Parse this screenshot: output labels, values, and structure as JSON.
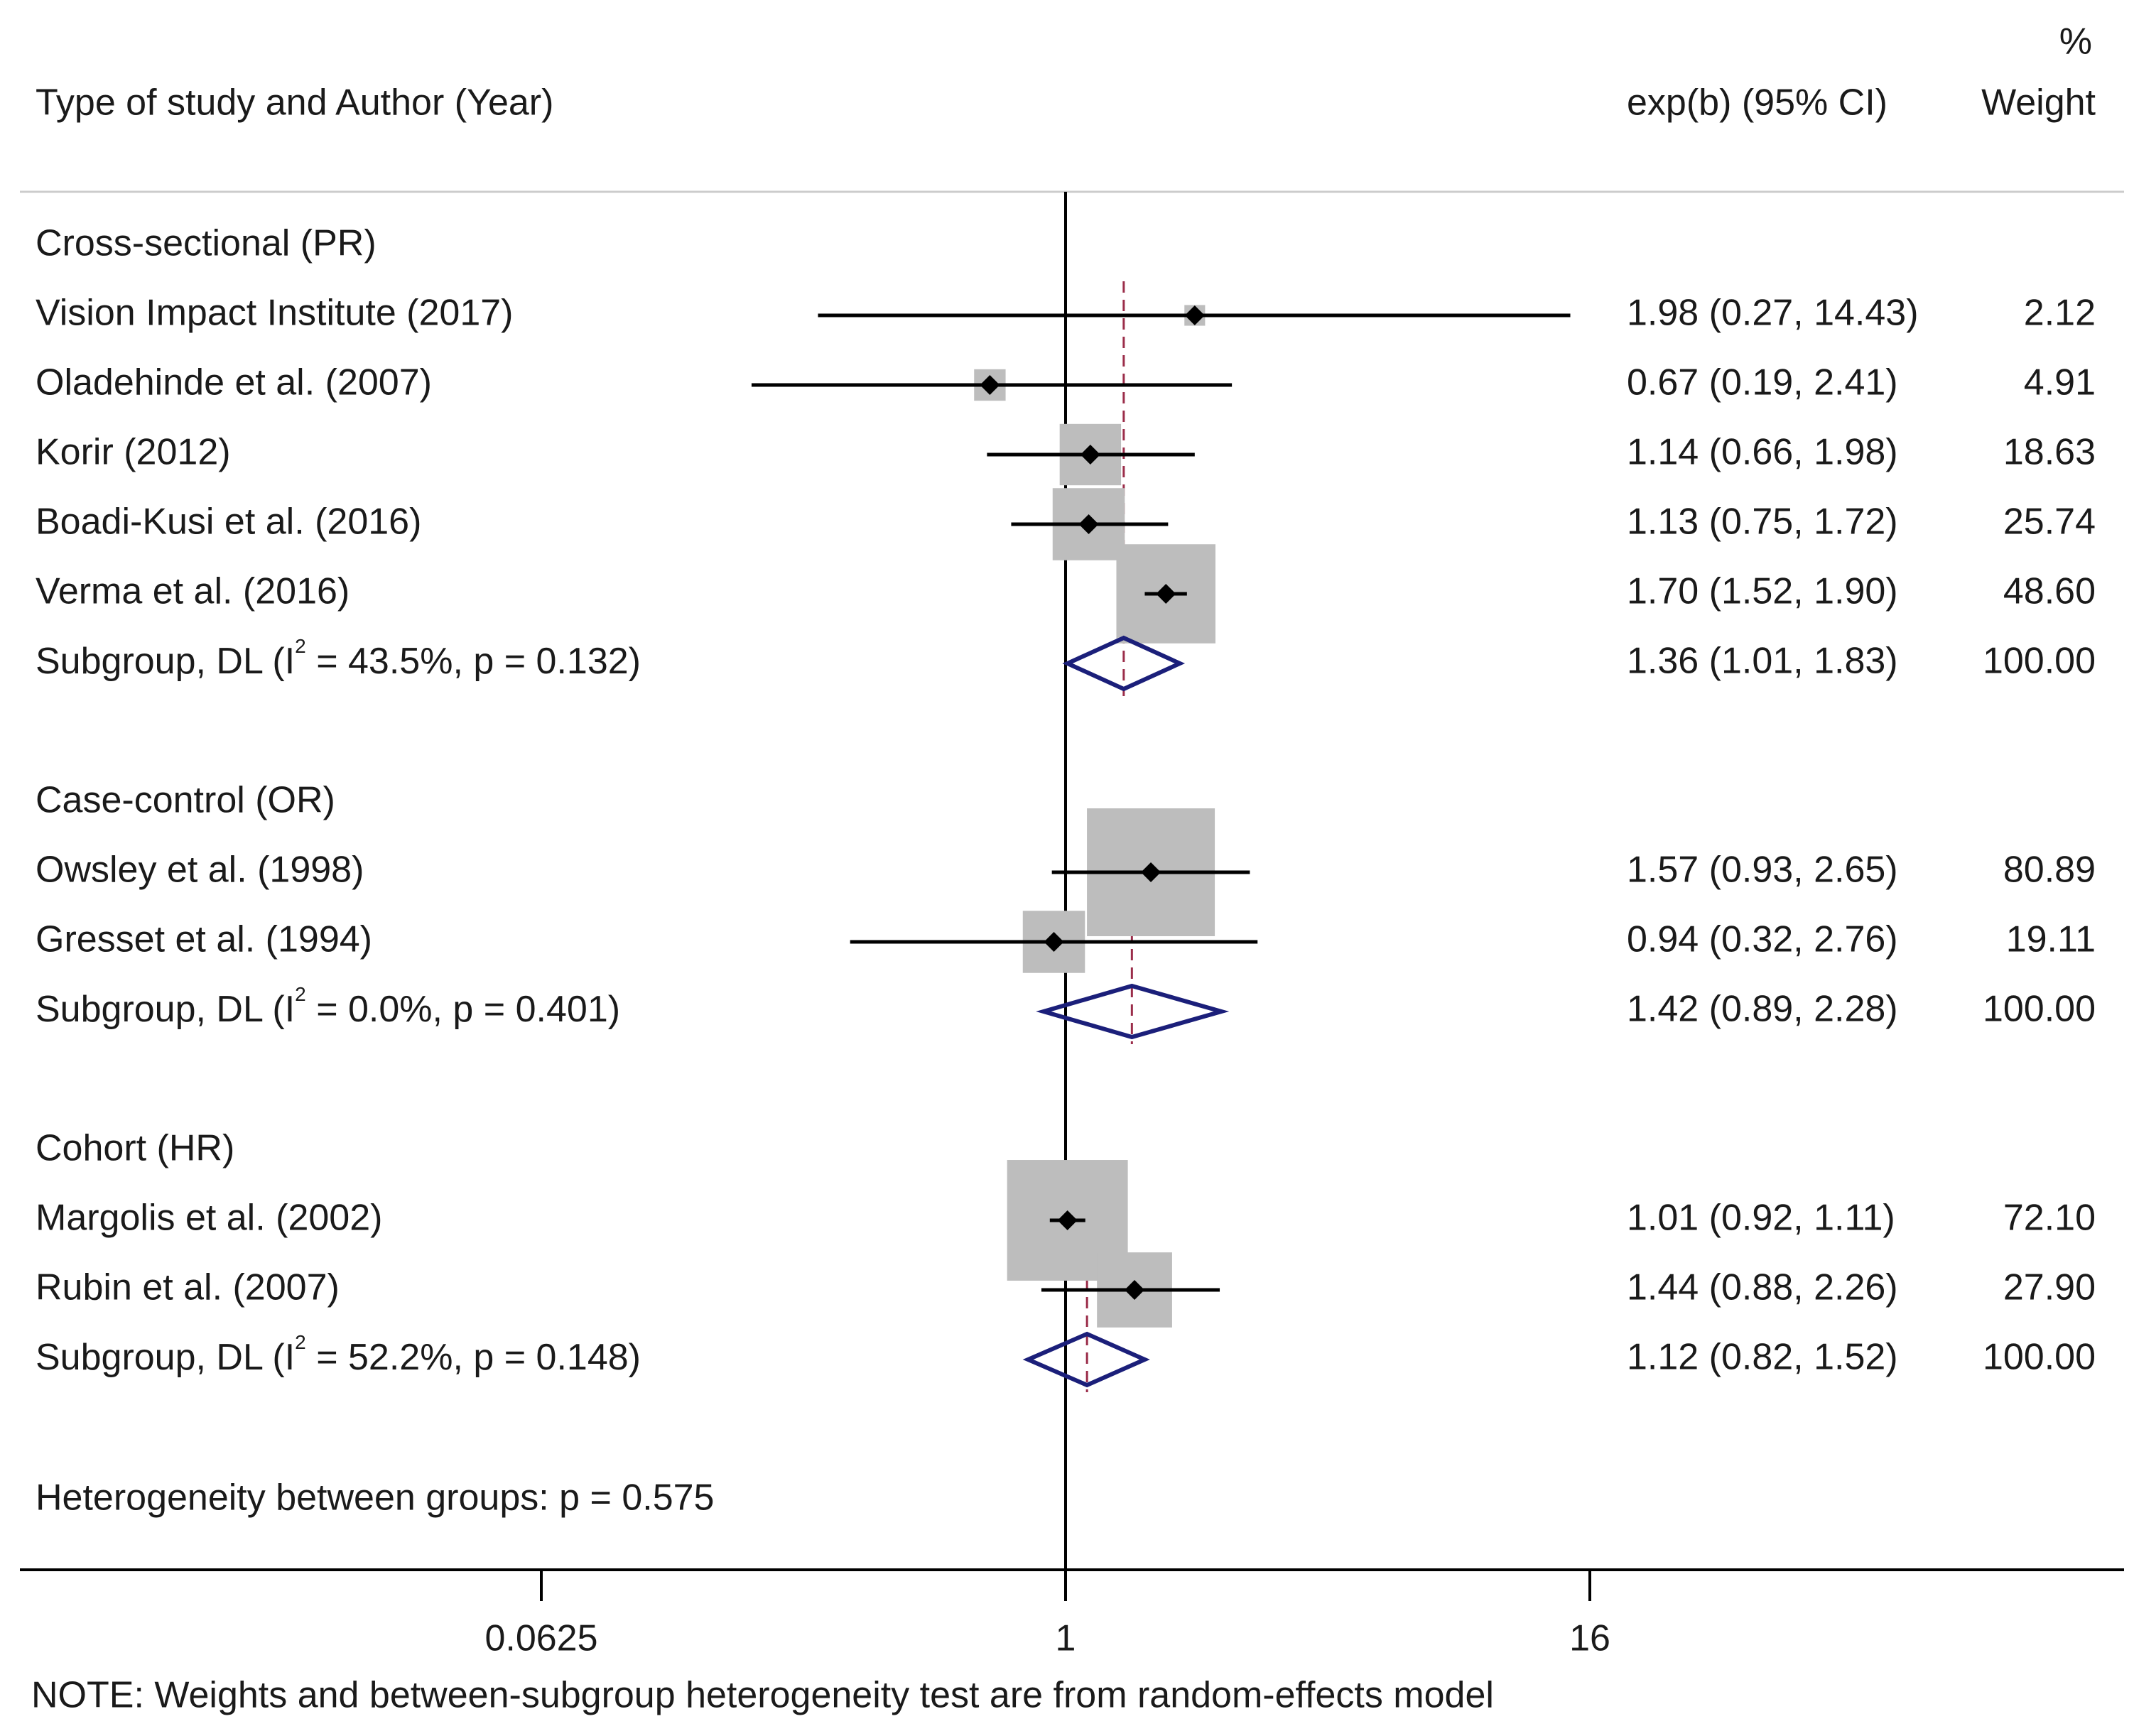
{
  "chart_data": {
    "type": "forest",
    "header": {
      "left": "Type of study and Author (Year)",
      "effect": "exp(b) (95% CI)",
      "weight_pct": "%",
      "weight": "Weight"
    },
    "x_scale": "log2",
    "x_ticks": [
      {
        "value": 0.0625,
        "label": "0.0625"
      },
      {
        "value": 1,
        "label": "1"
      },
      {
        "value": 16,
        "label": "16"
      }
    ],
    "null_line": 1,
    "groups": [
      {
        "title": "Cross-sectional (PR)",
        "studies": [
          {
            "label": "Vision Impact Institute  (2017)",
            "est": 1.98,
            "lo": 0.27,
            "hi": 14.43,
            "weight": 2.12,
            "ci_text": "1.98 (0.27, 14.43)",
            "weight_text": "2.12"
          },
          {
            "label": "Oladehinde et al.  (2007)",
            "est": 0.67,
            "lo": 0.19,
            "hi": 2.41,
            "weight": 4.91,
            "ci_text": "0.67 (0.19, 2.41)",
            "weight_text": "4.91"
          },
          {
            "label": "Korir  (2012)",
            "est": 1.14,
            "lo": 0.66,
            "hi": 1.98,
            "weight": 18.63,
            "ci_text": "1.14 (0.66, 1.98)",
            "weight_text": "18.63"
          },
          {
            "label": "Boadi-Kusi et al.  (2016)",
            "est": 1.13,
            "lo": 0.75,
            "hi": 1.72,
            "weight": 25.74,
            "ci_text": "1.13 (0.75, 1.72)",
            "weight_text": "25.74"
          },
          {
            "label": "Verma et al.  (2016)",
            "est": 1.7,
            "lo": 1.52,
            "hi": 1.9,
            "weight": 48.6,
            "ci_text": "1.70 (1.52, 1.90)",
            "weight_text": "48.60"
          }
        ],
        "subgroup": {
          "label_pre": "Subgroup, DL (I",
          "label_sup": "2",
          "label_post": " = 43.5%, p = 0.132)",
          "est": 1.36,
          "lo": 1.01,
          "hi": 1.83,
          "ci_text": "1.36 (1.01, 1.83)",
          "weight_text": "100.00"
        }
      },
      {
        "title": "Case-control (OR)",
        "studies": [
          {
            "label": "Owsley et al.  (1998)",
            "est": 1.57,
            "lo": 0.93,
            "hi": 2.65,
            "weight": 80.89,
            "ci_text": "1.57 (0.93, 2.65)",
            "weight_text": "80.89"
          },
          {
            "label": "Gresset et al.  (1994)",
            "est": 0.94,
            "lo": 0.32,
            "hi": 2.76,
            "weight": 19.11,
            "ci_text": "0.94 (0.32, 2.76)",
            "weight_text": "19.11"
          }
        ],
        "subgroup": {
          "label_pre": "Subgroup, DL (I",
          "label_sup": "2",
          "label_post": " = 0.0%, p = 0.401)",
          "est": 1.42,
          "lo": 0.89,
          "hi": 2.28,
          "ci_text": "1.42 (0.89, 2.28)",
          "weight_text": "100.00"
        }
      },
      {
        "title": "Cohort (HR)",
        "studies": [
          {
            "label": "Margolis et al.  (2002)",
            "est": 1.01,
            "lo": 0.92,
            "hi": 1.11,
            "weight": 72.1,
            "ci_text": "1.01 (0.92, 1.11)",
            "weight_text": "72.10"
          },
          {
            "label": "Rubin et al.  (2007)",
            "est": 1.44,
            "lo": 0.88,
            "hi": 2.26,
            "weight": 27.9,
            "ci_text": "1.44 (0.88, 2.26)",
            "weight_text": "27.90"
          }
        ],
        "subgroup": {
          "label_pre": "Subgroup, DL (I",
          "label_sup": "2",
          "label_post": " = 52.2%, p = 0.148)",
          "est": 1.12,
          "lo": 0.82,
          "hi": 1.52,
          "ci_text": "1.12 (0.82, 1.52)",
          "weight_text": "100.00"
        }
      }
    ],
    "heterogeneity": "Heterogeneity between groups: p = 0.575",
    "note": "NOTE: Weights and between-subgroup heterogeneity test are from random-effects model",
    "colors": {
      "text": "#1a1a1a",
      "ci_line": "#000000",
      "weight_box": "#bdbdbd",
      "diamond": "#1b1f7a",
      "pooled_line": "#9b2d4a",
      "rule": "#cccccc",
      "axis": "#000000"
    }
  }
}
